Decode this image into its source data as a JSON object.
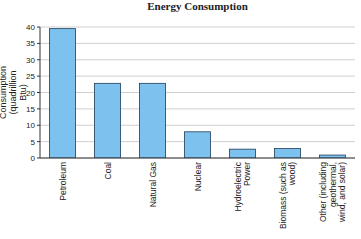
{
  "chart_data": {
    "type": "bar",
    "title": "Energy Consumption",
    "y_label": "Consumption (quadrillion Btu)",
    "categories": [
      "Petroleum",
      "Coal",
      "Natural Gas",
      "Nuclear",
      "Hydroelectric Power",
      "Biomass (such as wood)",
      "Other (including geothermal, wind, and solar)"
    ],
    "values": [
      39.5,
      22.8,
      22.8,
      8,
      2.7,
      2.9,
      0.9
    ],
    "color": "#7dc1ee",
    "ylim": [
      0,
      40
    ],
    "yticks": [
      0,
      5,
      10,
      15,
      20,
      25,
      30,
      35,
      40
    ],
    "grid": true
  }
}
